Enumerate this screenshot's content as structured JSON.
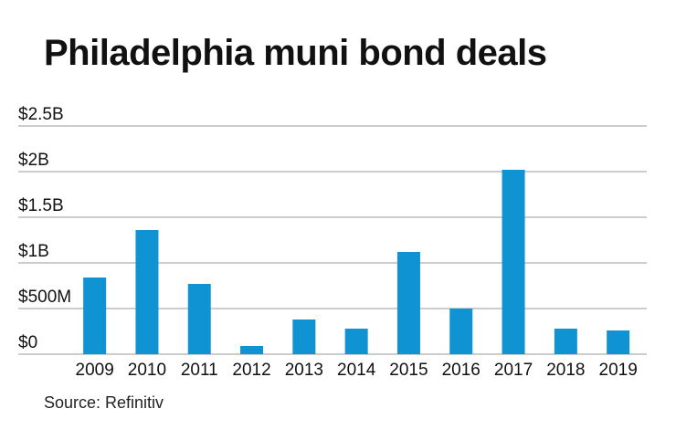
{
  "title": "Philadelphia muni bond deals",
  "source": "Source: Refinitiv",
  "chart_data": {
    "type": "bar",
    "title": "Philadelphia muni bond deals",
    "xlabel": "",
    "ylabel": "",
    "categories": [
      "2009",
      "2010",
      "2011",
      "2012",
      "2013",
      "2014",
      "2015",
      "2016",
      "2017",
      "2018",
      "2019"
    ],
    "values": [
      0.84,
      1.36,
      0.77,
      0.09,
      0.38,
      0.28,
      1.12,
      0.5,
      2.02,
      0.28,
      0.26
    ],
    "unit": "billions USD",
    "ylim": [
      0,
      2.5
    ],
    "yticks": [
      0,
      0.5,
      1,
      1.5,
      2,
      2.5
    ],
    "ytick_labels": [
      "$0",
      "$500M",
      "$1B",
      "$1.5B",
      "$2B",
      "$2.5B"
    ],
    "grid": true,
    "bar_color": "#0f93d2",
    "grid_color": "#9a9a9a"
  }
}
